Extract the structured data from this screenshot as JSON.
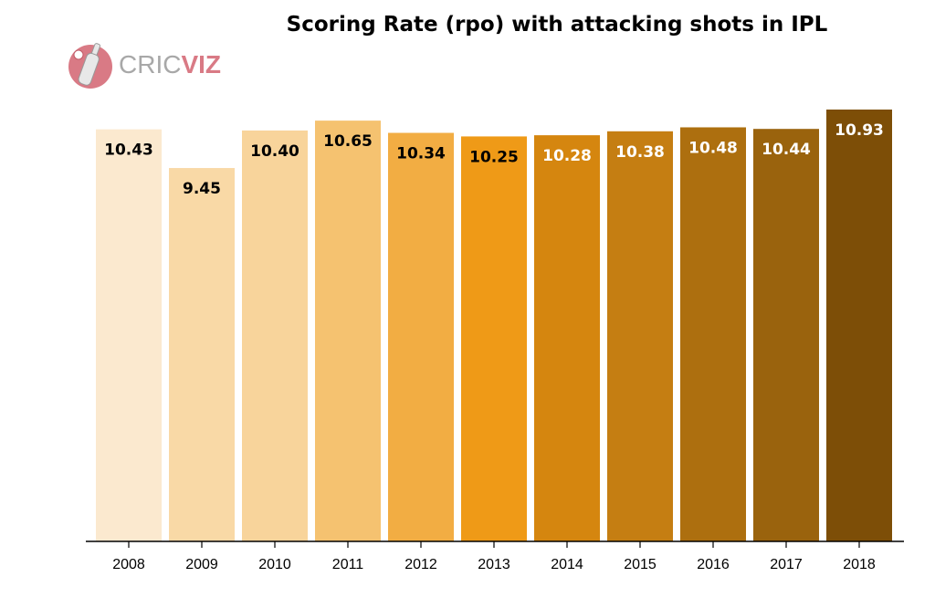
{
  "chart_data": {
    "type": "bar",
    "title": "Scoring Rate (rpo) with attacking shots in IPL",
    "xlabel": "",
    "ylabel": "",
    "categories": [
      "2008",
      "2009",
      "2010",
      "2011",
      "2012",
      "2013",
      "2014",
      "2015",
      "2016",
      "2017",
      "2018"
    ],
    "values": [
      10.43,
      9.45,
      10.4,
      10.65,
      10.34,
      10.25,
      10.28,
      10.38,
      10.48,
      10.44,
      10.93
    ],
    "value_labels": [
      "10.43",
      "9.45",
      "10.40",
      "10.65",
      "10.34",
      "10.25",
      "10.28",
      "10.38",
      "10.48",
      "10.44",
      "10.93"
    ],
    "bar_colors": [
      "#fbe9cf",
      "#f9d9a6",
      "#f8d49b",
      "#f5c270",
      "#f2ad43",
      "#ef9a17",
      "#d5860f",
      "#c57e12",
      "#ad6f0f",
      "#9a630d",
      "#7d4e07"
    ],
    "label_colors": [
      "#000000",
      "#000000",
      "#000000",
      "#000000",
      "#000000",
      "#000000",
      "#ffffff",
      "#ffffff",
      "#ffffff",
      "#ffffff",
      "#ffffff"
    ],
    "grid": false,
    "legend": "none"
  },
  "logo": {
    "text_part1": "CRIC",
    "text_part2": "VIZ",
    "icon": "cricket-bat-ball-icon",
    "accent": "#d97a85"
  }
}
